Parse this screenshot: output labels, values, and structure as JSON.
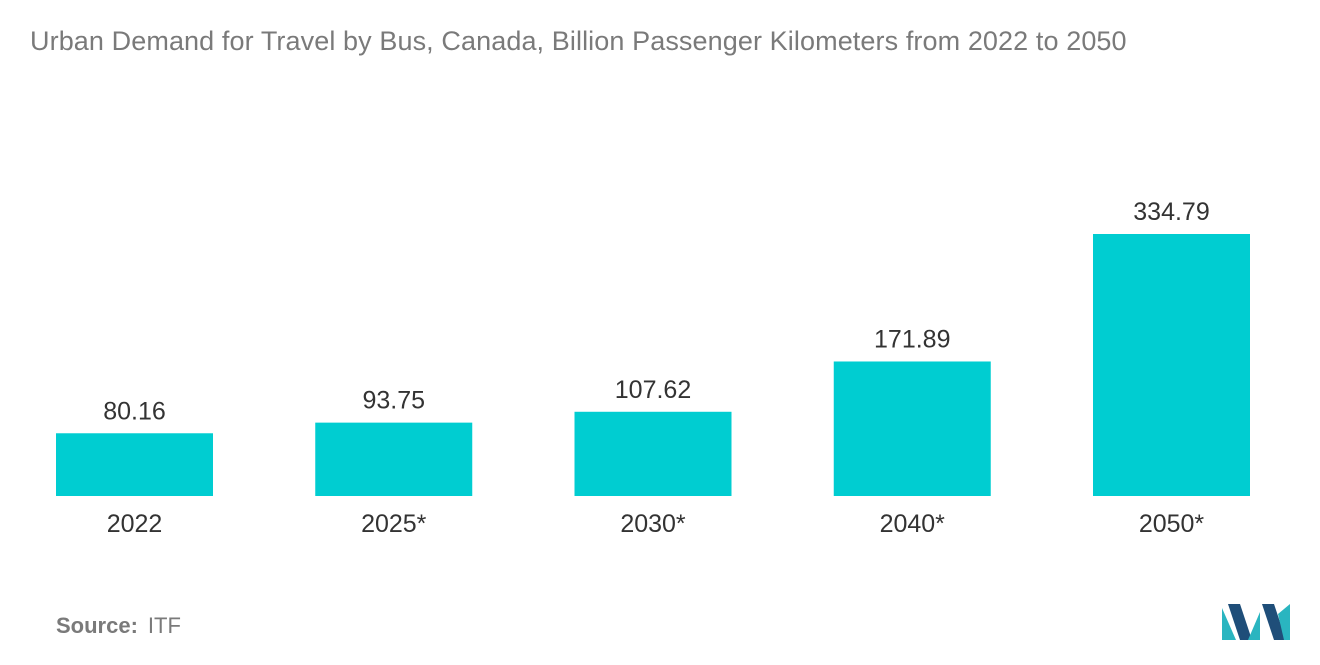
{
  "title": "Urban Demand for Travel by Bus, Canada, Billion Passenger Kilometers from 2022 to 2050",
  "source": {
    "label": "Source:",
    "value": "ITF"
  },
  "colors": {
    "bar": "#00CDD1",
    "label_text": "#333333",
    "title_text": "#7a7a7a",
    "logo_dark": "#1f4e79",
    "logo_teal": "#2ab5c0"
  },
  "icons": {
    "logo": "mordor-intelligence-logo-icon"
  },
  "chart_data": {
    "type": "bar",
    "title": "Urban Demand for Travel by Bus, Canada, Billion Passenger Kilometers from 2022 to 2050",
    "xlabel": "",
    "ylabel": "",
    "categories": [
      "2022",
      "2025*",
      "2030*",
      "2040*",
      "2050*"
    ],
    "values": [
      80.16,
      93.75,
      107.62,
      171.89,
      334.79
    ],
    "value_labels": [
      "80.16",
      "93.75",
      "107.62",
      "171.89",
      "334.79"
    ],
    "ylim": [
      0,
      334.79
    ],
    "grid": false,
    "legend": "none"
  }
}
